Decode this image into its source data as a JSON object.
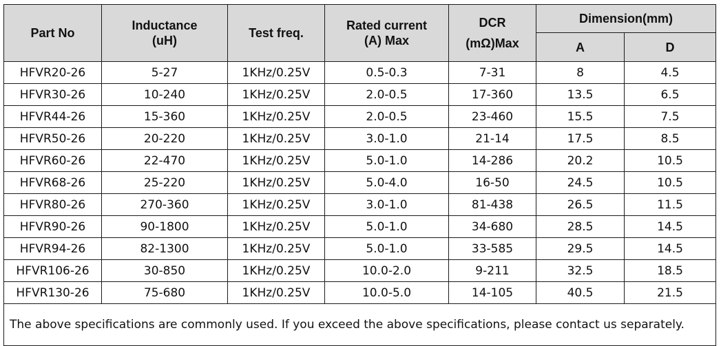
{
  "headers": {
    "part_no": "Part No",
    "inductance": [
      "Inductance",
      "(uH)"
    ],
    "test_freq": "Test freq.",
    "rated_current": [
      "Rated current",
      "(A) Max"
    ],
    "dcr": [
      "DCR",
      "(mΩ)Max"
    ],
    "dimension": "Dimension(mm)",
    "dim_a": "A",
    "dim_d": "D"
  },
  "rows": [
    [
      "HFVR20-26",
      "5-27",
      "1KHz/0.25V",
      "0.5-0.3",
      "7-31",
      "8",
      "4.5"
    ],
    [
      "HFVR30-26",
      "10-240",
      "1KHz/0.25V",
      "2.0-0.5",
      "17-360",
      "13.5",
      "6.5"
    ],
    [
      "HFVR44-26",
      "15-360",
      "1KHz/0.25V",
      "2.0-0.5",
      "23-460",
      "15.5",
      "7.5"
    ],
    [
      "HFVR50-26",
      "20-220",
      "1KHz/0.25V",
      "3.0-1.0",
      "21-14",
      "17.5",
      "8.5"
    ],
    [
      "HFVR60-26",
      "22-470",
      "1KHz/0.25V",
      "5.0-1.0",
      "14-286",
      "20.2",
      "10.5"
    ],
    [
      "HFVR68-26",
      "25-220",
      "1KHz/0.25V",
      "5.0-4.0",
      "16-50",
      "24.5",
      "10.5"
    ],
    [
      "HFVR80-26",
      "270-360",
      "1KHz/0.25V",
      "3.0-1.0",
      "81-438",
      "26.5",
      "11.5"
    ],
    [
      "HFVR90-26",
      "90-1800",
      "1KHz/0.25V",
      "5.0-1.0",
      "34-680",
      "28.5",
      "14.5"
    ],
    [
      "HFVR94-26",
      "82-1300",
      "1KHz/0.25V",
      "5.0-1.0",
      "33-585",
      "29.5",
      "14.5"
    ],
    [
      "HFVR106-26",
      "30-850",
      "1KHz/0.25V",
      "10.0-2.0",
      "9-211",
      "32.5",
      "18.5"
    ],
    [
      "HFVR130-26",
      "75-680",
      "1KHz/0.25V",
      "10.0-5.0",
      "14-105",
      "40.5",
      "21.5"
    ]
  ],
  "note": "The above specifications are commonly used. If you exceed the above specifications, please contact us separately."
}
